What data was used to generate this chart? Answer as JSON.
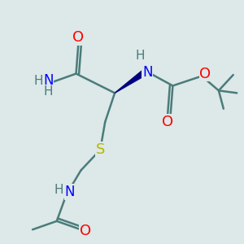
{
  "bg_color": "#dde8e8",
  "bond_color": "#4a7c7a",
  "bond_width": 1.8,
  "atom_colors": {
    "O": "#ff0000",
    "N": "#0000ff",
    "S": "#b8b800",
    "H": "#4a7c7a",
    "C": "#4a7c7a"
  },
  "font_size_atom": 11,
  "wedge_color": "#000080",
  "figsize": [
    3.0,
    3.0
  ],
  "dpi": 100
}
